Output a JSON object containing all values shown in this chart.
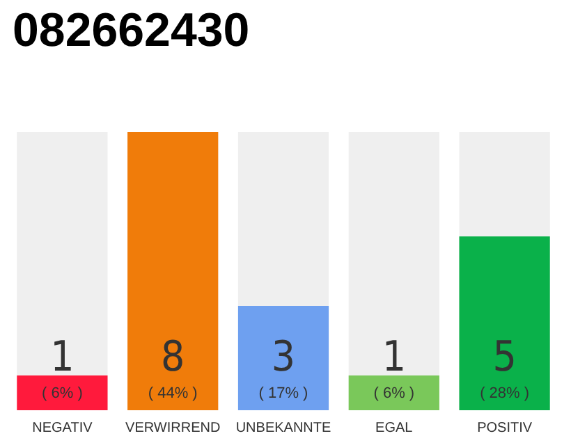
{
  "chart_data": {
    "type": "bar",
    "title": "082662430",
    "categories": [
      "NEGATIV",
      "VERWIRREND",
      "UNBEKANNTE",
      "EGAL",
      "POSITIV"
    ],
    "values": [
      1,
      8,
      3,
      1,
      5
    ],
    "colors": [
      "#ff1a3c",
      "#f07c0a",
      "#6ea0f0",
      "#7ac85a",
      "#0ab14a"
    ],
    "value_labels": [
      "1\n( 6% )",
      "8\n( 44% )",
      "3\n( 17% )",
      "1\n( 6% )",
      "5\n( 28% )"
    ]
  }
}
